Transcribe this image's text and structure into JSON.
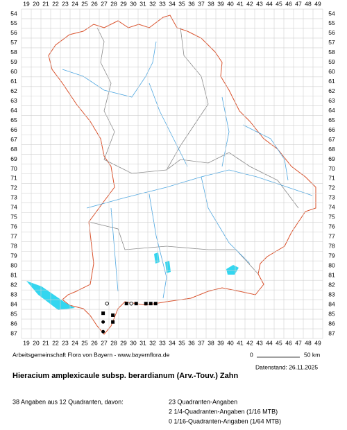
{
  "grid": {
    "columns": [
      19,
      20,
      21,
      22,
      23,
      24,
      25,
      26,
      27,
      28,
      29,
      30,
      31,
      32,
      33,
      34,
      35,
      36,
      37,
      38,
      39,
      40,
      41,
      42,
      43,
      44,
      45,
      46,
      47,
      48,
      49
    ],
    "rows": [
      54,
      55,
      56,
      57,
      58,
      59,
      60,
      61,
      62,
      63,
      64,
      65,
      66,
      67,
      68,
      69,
      70,
      71,
      72,
      73,
      74,
      75,
      76,
      77,
      78,
      79,
      80,
      81,
      82,
      83,
      84,
      85,
      86,
      87
    ]
  },
  "map": {
    "points": [
      {
        "x": 27.3,
        "y": 83.9,
        "symbol": "circle-open"
      },
      {
        "x": 26.9,
        "y": 84.9,
        "symbol": "square"
      },
      {
        "x": 27.9,
        "y": 85.1,
        "symbol": "square"
      },
      {
        "x": 27.9,
        "y": 85.8,
        "symbol": "square"
      },
      {
        "x": 26.9,
        "y": 85.8,
        "symbol": "circle-filled"
      },
      {
        "x": 26.9,
        "y": 86.8,
        "symbol": "circle-filled"
      },
      {
        "x": 29.3,
        "y": 83.9,
        "symbol": "square"
      },
      {
        "x": 29.8,
        "y": 83.9,
        "symbol": "circle-open"
      },
      {
        "x": 30.3,
        "y": 83.9,
        "symbol": "square"
      },
      {
        "x": 31.3,
        "y": 83.9,
        "symbol": "square"
      },
      {
        "x": 31.8,
        "y": 83.9,
        "symbol": "square"
      },
      {
        "x": 32.3,
        "y": 83.9,
        "symbol": "square"
      }
    ]
  },
  "footer": {
    "credit": "Arbeitsgemeinschaft Flora von Bayern - www.bayernflora.de",
    "scale_start": "0",
    "scale_end": "50 km",
    "date": "Datenstand: 26.11.2025"
  },
  "title": "Hieracium amplexicaule subsp. berardianum (Arv.-Touv.) Zahn",
  "summary": {
    "total": "38 Angaben aus 12 Quadranten, davon:",
    "lines": [
      "23 Quadranten-Angaben",
      "2 1/4-Quadranten-Angaben (1/16 MTB)",
      "0 1/16-Quadranten-Angaben (1/64 MTB)"
    ]
  }
}
